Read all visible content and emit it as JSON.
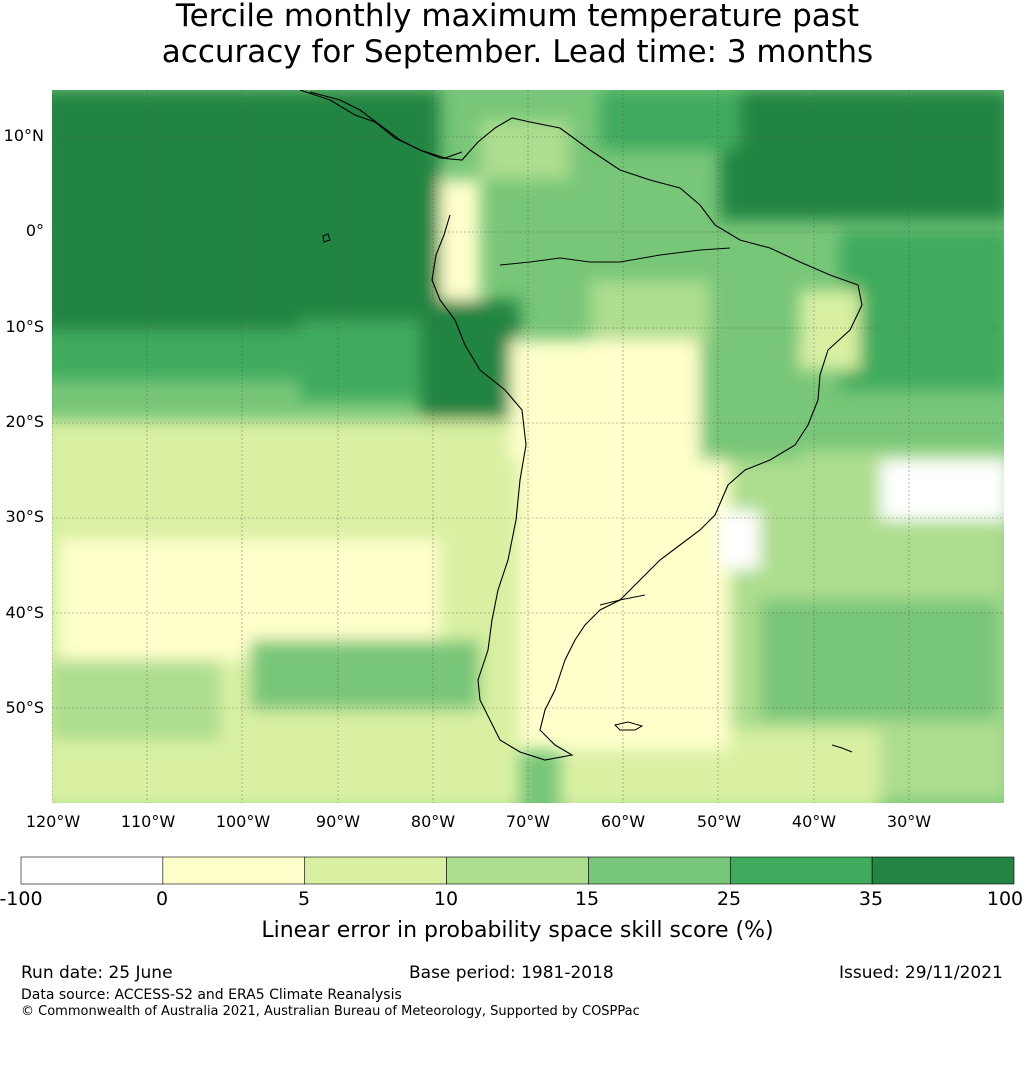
{
  "title": {
    "line1": "Tercile monthly maximum temperature past",
    "line2": "accuracy for September. Lead time: 3 months"
  },
  "map": {
    "lat_labels": [
      "10°N",
      "0°",
      "10°S",
      "20°S",
      "30°S",
      "40°S",
      "50°S"
    ],
    "lon_labels": [
      "120°W",
      "110°W",
      "100°W",
      "90°W",
      "80°W",
      "70°W",
      "60°W",
      "50°W",
      "40°W",
      "30°W"
    ],
    "lat_values": [
      10,
      0,
      -10,
      -20,
      -30,
      -40,
      -50
    ],
    "lon_values": [
      -120,
      -110,
      -100,
      -90,
      -80,
      -70,
      -60,
      -50,
      -40,
      -30
    ],
    "extent": {
      "lon_min": -120,
      "lon_max": -20,
      "lat_min": -60,
      "lat_max": 15
    }
  },
  "colorbar": {
    "ticks": [
      "-100",
      "0",
      "5",
      "10",
      "15",
      "25",
      "35",
      "100"
    ],
    "colors": [
      "#ffffff",
      "#ffffcc",
      "#d9f0a3",
      "#addd8e",
      "#78c679",
      "#41ab5d",
      "#238443"
    ],
    "label": "Linear error in probability space skill score (%)"
  },
  "footer": {
    "run_date": "Run date: 25 June",
    "base_period": "Base period: 1981-2018",
    "issued": "Issued: 29/11/2021",
    "data_source": "Data source: ACCESS-S2 and ERA5 Climate Reanalysis",
    "copyright": "© Commonwealth of Australia 2021, Australian Bureau of Meteorology, Supported by COSPPac"
  }
}
